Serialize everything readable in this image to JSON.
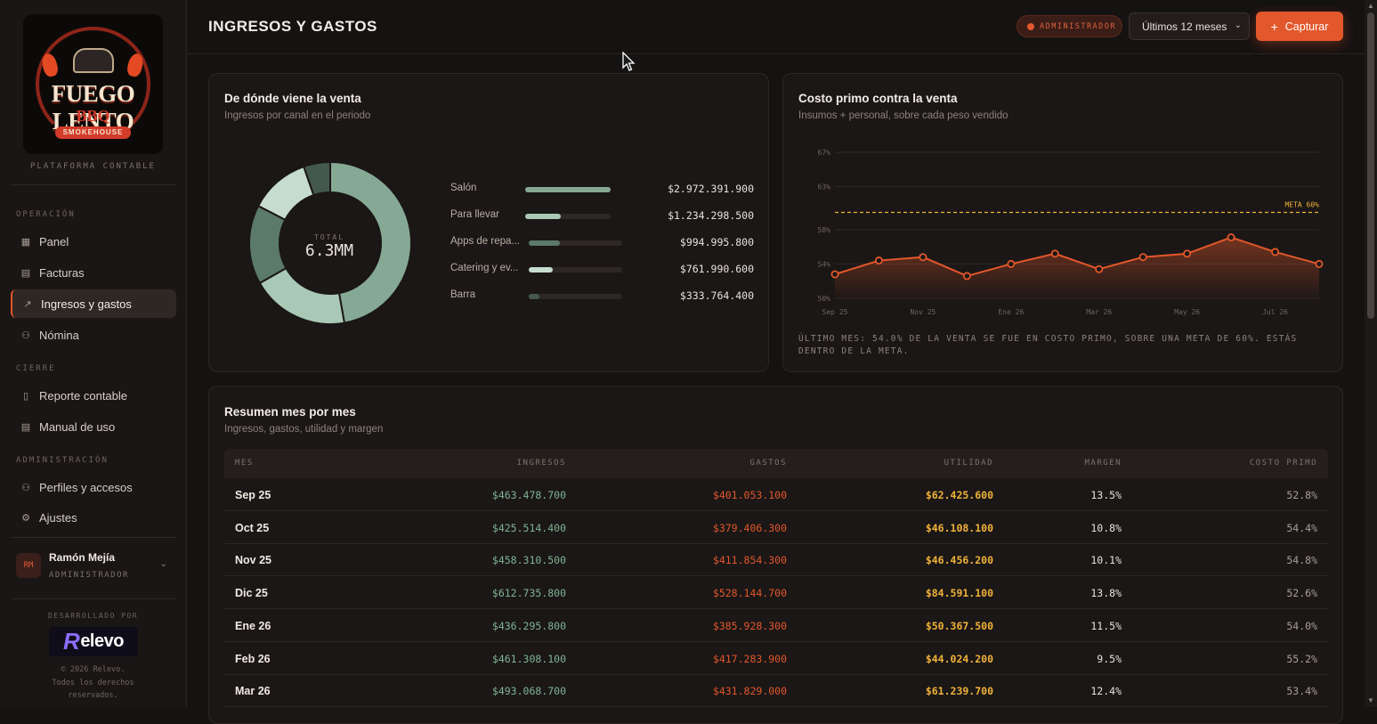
{
  "brand": {
    "logo_name": "FUEGO LENTO",
    "logo_bbq": "BBQ",
    "logo_banner": "SMOKEHOUSE",
    "platform": "PLATAFORMA CONTABLE"
  },
  "sidebar": {
    "sections": [
      {
        "title": "OPERACIÓN",
        "items": [
          {
            "label": "Panel",
            "icon": "grid-icon"
          },
          {
            "label": "Facturas",
            "icon": "receipt-icon"
          },
          {
            "label": "Ingresos y gastos",
            "icon": "trend-icon",
            "active": true
          },
          {
            "label": "Nómina",
            "icon": "user-plus-icon"
          }
        ]
      },
      {
        "title": "CIERRE",
        "items": [
          {
            "label": "Reporte contable",
            "icon": "file-icon"
          },
          {
            "label": "Manual de uso",
            "icon": "book-icon"
          }
        ]
      },
      {
        "title": "ADMINISTRACIÓN",
        "items": [
          {
            "label": "Perfiles y accesos",
            "icon": "users-icon"
          },
          {
            "label": "Ajustes",
            "icon": "gear-icon"
          }
        ]
      }
    ],
    "user": {
      "initials": "RM",
      "name": "Ramón Mejía",
      "role": "ADMINISTRADOR"
    },
    "developer": {
      "label": "DESARROLLADO POR",
      "brand": "elevo",
      "brand_letter": "R",
      "copyright_1": "© 2026 Relevo.",
      "copyright_2": "Todos los derechos",
      "copyright_3": "reservados."
    }
  },
  "header": {
    "title": "INGRESOS Y GASTOS",
    "role_badge": "ADMINISTRADOR",
    "period_select": "Últimos 12 meses",
    "capture_button": "Capturar"
  },
  "revenue_card": {
    "title": "De dónde viene la venta",
    "subtitle": "Ingresos por canal en el periodo",
    "total_label": "TOTAL",
    "total_value": "6.3MM"
  },
  "cost_card": {
    "title": "Costo primo contra la venta",
    "subtitle": "Insumos + personal, sobre cada peso vendido",
    "note": "ÚLTIMO MES: 54.0% DE LA VENTA SE FUE EN COSTO PRIMO, SOBRE UNA META DE 60%. ESTÁS DENTRO DE LA META."
  },
  "summary": {
    "title": "Resumen mes por mes",
    "subtitle": "Ingresos, gastos, utilidad y margen",
    "columns": [
      "MES",
      "INGRESOS",
      "GASTOS",
      "UTILIDAD",
      "MARGEN",
      "COSTO PRIMO"
    ],
    "rows": [
      {
        "month": "Sep 25",
        "income": "$463.478.700",
        "expenses": "$401.053.100",
        "profit": "$62.425.600",
        "margin": "13.5%",
        "prime": "52.8%"
      },
      {
        "month": "Oct 25",
        "income": "$425.514.400",
        "expenses": "$379.406.300",
        "profit": "$46.108.100",
        "margin": "10.8%",
        "prime": "54.4%"
      },
      {
        "month": "Nov 25",
        "income": "$458.310.500",
        "expenses": "$411.854.300",
        "profit": "$46.456.200",
        "margin": "10.1%",
        "prime": "54.8%"
      },
      {
        "month": "Dic 25",
        "income": "$612.735.800",
        "expenses": "$528.144.700",
        "profit": "$84.591.100",
        "margin": "13.8%",
        "prime": "52.6%"
      },
      {
        "month": "Ene 26",
        "income": "$436.295.800",
        "expenses": "$385.928.300",
        "profit": "$50.367.500",
        "margin": "11.5%",
        "prime": "54.0%"
      },
      {
        "month": "Feb 26",
        "income": "$461.308.100",
        "expenses": "$417.283.900",
        "profit": "$44.024.200",
        "margin": "9.5%",
        "prime": "55.2%"
      },
      {
        "month": "Mar 26",
        "income": "$493.068.700",
        "expenses": "$431.829.000",
        "profit": "$61.239.700",
        "margin": "12.4%",
        "prime": "53.4%"
      }
    ]
  },
  "colors": {
    "accent": "#e2572b",
    "income": "#7fb394",
    "expense": "#e2572b",
    "profit": "#f0b23a",
    "donut": [
      "#86a995",
      "#a9c8b5",
      "#5b7a69",
      "#c6dccf",
      "#44594d"
    ]
  },
  "chart_data": [
    {
      "type": "pie",
      "categories": [
        "Salón",
        "Para llevar",
        "Apps de repa...",
        "Catering y ev...",
        "Barra"
      ],
      "values": [
        2972391900,
        1234298500,
        994995800,
        761990600,
        333764400
      ],
      "value_labels": [
        "$2.972.391.900",
        "$1.234.298.500",
        "$994.995.800",
        "$761.990.600",
        "$333.764.400"
      ]
    },
    {
      "type": "line",
      "x": [
        "Sep 25",
        "Oct 25",
        "Nov 25",
        "Dic 25",
        "Ene 26",
        "Feb 26",
        "Mar 26",
        "Abr 26",
        "May 26",
        "Jun 26",
        "Jul 26",
        "Ago 26"
      ],
      "xticks": [
        "Sep 25",
        "Nov 25",
        "Ene 26",
        "Mar 26",
        "May 26",
        "Jul 26"
      ],
      "values": [
        52.8,
        54.4,
        54.8,
        52.6,
        54.0,
        55.2,
        53.4,
        54.8,
        55.2,
        57.1,
        55.4,
        54.0
      ],
      "ylim": [
        50,
        67
      ],
      "yticks": [
        50,
        54,
        58,
        63,
        67
      ],
      "ytick_labels": [
        "50%",
        "54%",
        "58%",
        "63%",
        "67%"
      ],
      "target": 60,
      "target_label": "META 60%",
      "grid": true
    }
  ]
}
